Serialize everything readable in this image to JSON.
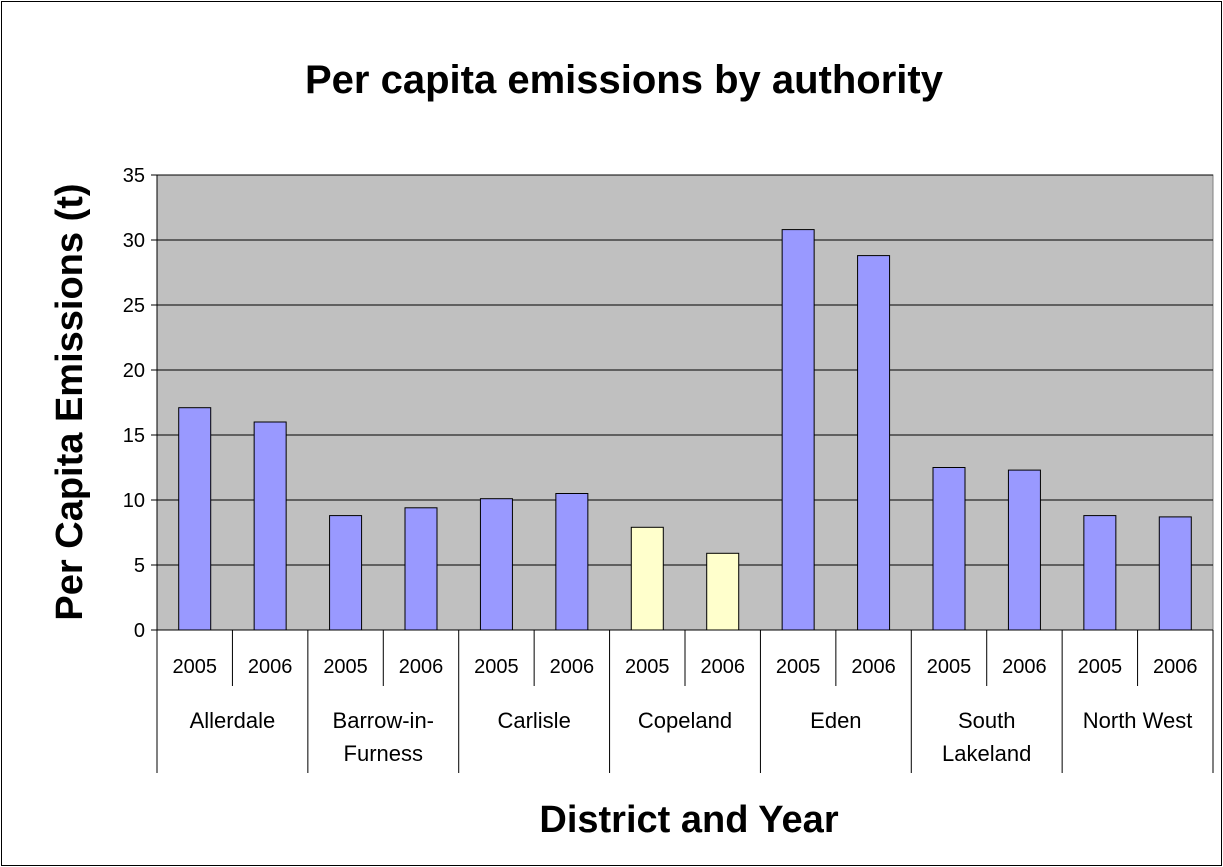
{
  "chart_data": {
    "type": "bar",
    "title": "Per capita emissions by authority",
    "xlabel": "District and Year",
    "ylabel": "Per Capita Emissions (t)",
    "ylim": [
      0,
      35
    ],
    "yticks": [
      "0",
      "5",
      "10",
      "15",
      "20",
      "25",
      "30",
      "35"
    ],
    "grid": true,
    "legend": "none",
    "plot_background": "#c0c0c0",
    "colors": {
      "default": "#9999ff",
      "highlight": "#ffffcc"
    },
    "groups": [
      {
        "name": "Allerdale",
        "label_lines": [
          "Allerdale"
        ],
        "years": [
          "2005",
          "2006"
        ],
        "values": [
          17.1,
          16.0
        ],
        "highlight": false
      },
      {
        "name": "Barrow-in-Furness",
        "label_lines": [
          "Barrow-in-",
          "Furness"
        ],
        "years": [
          "2005",
          "2006"
        ],
        "values": [
          8.8,
          9.4
        ],
        "highlight": false
      },
      {
        "name": "Carlisle",
        "label_lines": [
          "Carlisle"
        ],
        "years": [
          "2005",
          "2006"
        ],
        "values": [
          10.1,
          10.5
        ],
        "highlight": false
      },
      {
        "name": "Copeland",
        "label_lines": [
          "Copeland"
        ],
        "years": [
          "2005",
          "2006"
        ],
        "values": [
          7.9,
          5.9
        ],
        "highlight": true
      },
      {
        "name": "Eden",
        "label_lines": [
          "Eden"
        ],
        "years": [
          "2005",
          "2006"
        ],
        "values": [
          30.8,
          28.8
        ],
        "highlight": false
      },
      {
        "name": "South Lakeland",
        "label_lines": [
          "South",
          "Lakeland"
        ],
        "years": [
          "2005",
          "2006"
        ],
        "values": [
          12.5,
          12.3
        ],
        "highlight": false
      },
      {
        "name": "North West",
        "label_lines": [
          "North West"
        ],
        "years": [
          "2005",
          "2006"
        ],
        "values": [
          8.8,
          8.7
        ],
        "highlight": false
      }
    ]
  }
}
